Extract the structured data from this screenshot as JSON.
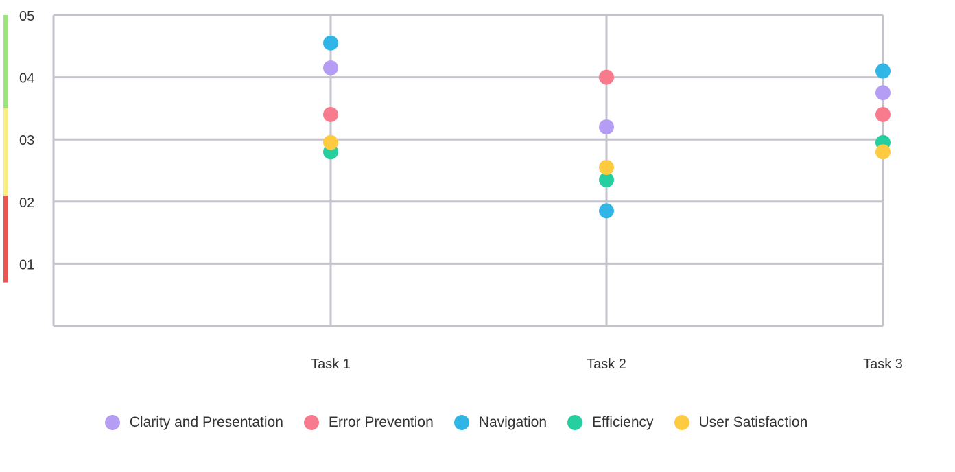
{
  "chart_data": {
    "type": "scatter",
    "categories": [
      "Task 1",
      "Task 2",
      "Task 3"
    ],
    "y_ticks": [
      "01",
      "02",
      "03",
      "04",
      "05"
    ],
    "ylim": [
      0,
      5
    ],
    "grid": true,
    "legend_position": "bottom",
    "threshold_bands": [
      {
        "from": 0.7,
        "to": 2.1,
        "color": "#ef5350"
      },
      {
        "from": 2.1,
        "to": 3.5,
        "color": "#f7ef7a"
      },
      {
        "from": 3.5,
        "to": 5.0,
        "color": "#9be57a"
      }
    ],
    "series": [
      {
        "name": "Clarity and Presentation",
        "color": "#b59cf5",
        "values": [
          4.15,
          3.2,
          3.75
        ]
      },
      {
        "name": "Error Prevention",
        "color": "#f77b8c",
        "values": [
          3.4,
          4.0,
          3.4
        ]
      },
      {
        "name": "Navigation",
        "color": "#2fb6e6",
        "values": [
          4.55,
          1.85,
          4.1
        ]
      },
      {
        "name": "Efficiency",
        "color": "#25cf9f",
        "values": [
          2.8,
          2.35,
          2.95
        ]
      },
      {
        "name": "User Satisfaction",
        "color": "#fdca40",
        "values": [
          2.95,
          2.55,
          2.8
        ]
      }
    ]
  }
}
